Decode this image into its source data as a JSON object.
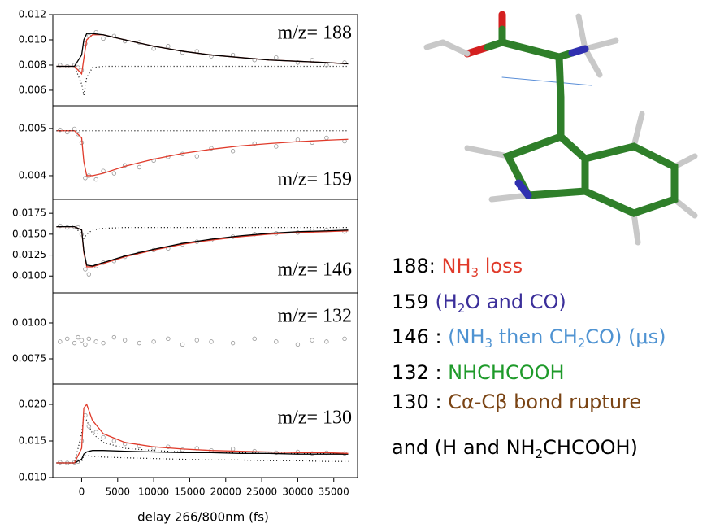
{
  "chart_data": [
    {
      "type": "line",
      "label": "m/z= 188",
      "xlim": [
        -4000,
        38300
      ],
      "ylim": [
        0.00477,
        0.012
      ],
      "yticks": [
        0.006,
        0.008,
        {
          "value": 0.01,
          "label": "0.010"
        },
        0.012
      ],
      "x": [
        -3500,
        -1000,
        0,
        300,
        700,
        1500,
        3000,
        6000,
        10000,
        14000,
        18000,
        22000,
        26000,
        30000,
        34000,
        37000
      ],
      "series": [
        {
          "color": "#e03a2a",
          "style": "solid",
          "values": [
            0.0079,
            0.0079,
            0.0073,
            0.0085,
            0.01,
            0.0104,
            0.0104,
            0.01,
            0.0095,
            0.0091,
            0.0088,
            0.0086,
            0.0084,
            0.0083,
            0.0082,
            0.0081
          ]
        },
        {
          "color": "#000000",
          "style": "solid",
          "values": [
            0.0079,
            0.0079,
            0.0088,
            0.01,
            0.0105,
            0.0105,
            0.0104,
            0.01,
            0.0095,
            0.0091,
            0.0088,
            0.0086,
            0.0084,
            0.0083,
            0.0082,
            0.0081
          ]
        },
        {
          "color": "#000000",
          "style": "dotted",
          "values": [
            0.0079,
            0.0079,
            0.0065,
            0.0056,
            0.007,
            0.0078,
            0.0079,
            0.0079,
            0.0079,
            0.0079,
            0.0079,
            0.0079,
            0.0079,
            0.0079,
            0.0079,
            0.0079
          ]
        }
      ],
      "scatter": {
        "color": "#999999",
        "x": [
          -3000,
          -2000,
          -1000,
          -500,
          0,
          500,
          1000,
          2000,
          3000,
          4500,
          6000,
          8000,
          10000,
          12000,
          14000,
          16000,
          18000,
          21000,
          24000,
          27000,
          30000,
          32000,
          34000,
          36500
        ],
        "values": [
          0.008,
          0.0079,
          0.008,
          0.0078,
          0.0076,
          0.0097,
          0.0103,
          0.0106,
          0.0101,
          0.0103,
          0.0099,
          0.0098,
          0.0093,
          0.0095,
          0.009,
          0.0091,
          0.0087,
          0.0088,
          0.0084,
          0.0086,
          0.0082,
          0.0084,
          0.008,
          0.0082
        ]
      }
    },
    {
      "type": "line",
      "label": "m/z= 159",
      "xlim": [
        -4000,
        38300
      ],
      "ylim": [
        0.0035,
        0.00548
      ],
      "yticks": [
        0.004,
        0.005
      ],
      "x": [
        -3500,
        -1000,
        0,
        300,
        700,
        1500,
        3000,
        6000,
        10000,
        14000,
        18000,
        22000,
        26000,
        30000,
        34000,
        37000
      ],
      "series": [
        {
          "color": "#e03a2a",
          "style": "solid",
          "values": [
            0.00495,
            0.00495,
            0.0048,
            0.0043,
            0.004,
            0.004,
            0.00405,
            0.0042,
            0.00435,
            0.00447,
            0.00456,
            0.00463,
            0.00468,
            0.00472,
            0.00475,
            0.00477
          ]
        },
        {
          "color": "#000000",
          "style": "dotted",
          "values": [
            0.00495,
            0.00495,
            0.00495,
            0.00495,
            0.00495,
            0.00495,
            0.00495,
            0.00495,
            0.00495,
            0.00495,
            0.00495,
            0.00495,
            0.00495,
            0.00495,
            0.00495,
            0.00495
          ]
        }
      ],
      "scatter": {
        "color": "#999999",
        "x": [
          -3000,
          -2000,
          -1000,
          -500,
          0,
          500,
          1000,
          2000,
          3000,
          4500,
          6000,
          8000,
          10000,
          12000,
          14000,
          16000,
          18000,
          21000,
          24000,
          27000,
          30000,
          32000,
          34000,
          36500
        ],
        "values": [
          0.00497,
          0.00492,
          0.00499,
          0.00488,
          0.0047,
          0.00395,
          0.004,
          0.00392,
          0.0041,
          0.00405,
          0.00422,
          0.00418,
          0.00432,
          0.0044,
          0.00446,
          0.00441,
          0.00458,
          0.00452,
          0.00468,
          0.00462,
          0.00476,
          0.0047,
          0.0048,
          0.00473
        ]
      }
    },
    {
      "type": "line",
      "label": "m/z= 146",
      "xlim": [
        -4000,
        38300
      ],
      "ylim": [
        0.00798,
        0.01917
      ],
      "yticks": [
        {
          "value": 0.01,
          "label": "0.0100"
        },
        0.0125,
        {
          "value": 0.015,
          "label": "0.0150"
        },
        0.0175
      ],
      "x": [
        -3500,
        -1000,
        0,
        300,
        700,
        1500,
        3000,
        6000,
        10000,
        14000,
        18000,
        22000,
        26000,
        30000,
        34000,
        37000
      ],
      "series": [
        {
          "color": "#000000",
          "style": "dotted",
          "values": [
            0.0159,
            0.0159,
            0.015,
            0.0145,
            0.015,
            0.0155,
            0.0157,
            0.0158,
            0.0158,
            0.0158,
            0.0158,
            0.0158,
            0.0158,
            0.0158,
            0.0158,
            0.0158
          ]
        },
        {
          "color": "#e03a2a",
          "style": "solid",
          "values": [
            0.0159,
            0.0159,
            0.0155,
            0.0128,
            0.0111,
            0.0111,
            0.0115,
            0.0123,
            0.0131,
            0.0138,
            0.0143,
            0.0147,
            0.015,
            0.0152,
            0.0153,
            0.0154
          ]
        },
        {
          "color": "#000000",
          "style": "solid",
          "values": [
            0.0159,
            0.0159,
            0.0155,
            0.013,
            0.0113,
            0.0112,
            0.0116,
            0.0124,
            0.0132,
            0.0139,
            0.0144,
            0.0148,
            0.0151,
            0.0153,
            0.0154,
            0.0155
          ]
        }
      ],
      "scatter": {
        "color": "#999999",
        "x": [
          -3000,
          -2000,
          -1000,
          -500,
          0,
          500,
          1000,
          2000,
          3000,
          4500,
          6000,
          8000,
          10000,
          12000,
          14000,
          16000,
          18000,
          21000,
          24000,
          27000,
          30000,
          32000,
          34000,
          36500
        ],
        "values": [
          0.016,
          0.0158,
          0.0159,
          0.0158,
          0.015,
          0.0108,
          0.0102,
          0.0112,
          0.0116,
          0.0118,
          0.0123,
          0.0127,
          0.0131,
          0.0133,
          0.0138,
          0.0141,
          0.0143,
          0.0147,
          0.015,
          0.0151,
          0.0152,
          0.0154,
          0.0155,
          0.0153
        ]
      }
    },
    {
      "type": "line",
      "label": "m/z= 132",
      "xlim": [
        -4000,
        38300
      ],
      "ylim": [
        0.00574,
        0.0121
      ],
      "yticks": [
        0.0075,
        {
          "value": 0.01,
          "label": "0.0100"
        }
      ],
      "x": [],
      "series": [],
      "scatter": {
        "color": "#999999",
        "x": [
          -3000,
          -2000,
          -1000,
          -500,
          0,
          500,
          1000,
          2000,
          3000,
          4500,
          6000,
          8000,
          10000,
          12000,
          14000,
          16000,
          18000,
          21000,
          24000,
          27000,
          30000,
          32000,
          34000,
          36500
        ],
        "values": [
          0.0087,
          0.0089,
          0.0086,
          0.009,
          0.0088,
          0.0085,
          0.0089,
          0.0087,
          0.0086,
          0.009,
          0.0088,
          0.0086,
          0.0087,
          0.0089,
          0.0085,
          0.0088,
          0.0087,
          0.0086,
          0.0089,
          0.0087,
          0.0085,
          0.0088,
          0.0087,
          0.0089
        ]
      }
    },
    {
      "type": "line",
      "label": "m/z= 130",
      "xlim": [
        -4000,
        38300
      ],
      "ylim": [
        0.01,
        0.02278
      ],
      "yticks": [
        {
          "value": 0.01,
          "label": "0.010"
        },
        0.015,
        {
          "value": 0.02,
          "label": "0.020"
        }
      ],
      "xticks": [
        0,
        5000,
        10000,
        15000,
        20000,
        25000,
        30000,
        35000
      ],
      "xlabel": "delay 266/800nm (fs)",
      "x": [
        -3500,
        -1000,
        0,
        300,
        700,
        1500,
        3000,
        6000,
        10000,
        14000,
        18000,
        22000,
        26000,
        30000,
        34000,
        37000
      ],
      "series": [
        {
          "color": "#000000",
          "style": "dotted",
          "values": [
            0.012,
            0.012,
            0.016,
            0.0185,
            0.0178,
            0.016,
            0.0148,
            0.014,
            0.0137,
            0.0135,
            0.0134,
            0.0134,
            0.0133,
            0.0133,
            0.0133,
            0.0133
          ]
        },
        {
          "color": "#000000",
          "style": "dotted",
          "values": [
            0.012,
            0.012,
            0.0122,
            0.013,
            0.013,
            0.0129,
            0.0128,
            0.0127,
            0.0126,
            0.0125,
            0.0124,
            0.0124,
            0.0123,
            0.0123,
            0.0122,
            0.0122
          ]
        },
        {
          "color": "#000000",
          "style": "solid",
          "values": [
            0.012,
            0.012,
            0.0125,
            0.0132,
            0.0135,
            0.0137,
            0.0137,
            0.0136,
            0.0135,
            0.0134,
            0.0134,
            0.0133,
            0.0133,
            0.0132,
            0.0132,
            0.0132
          ]
        },
        {
          "color": "#e03a2a",
          "style": "solid",
          "values": [
            0.012,
            0.012,
            0.014,
            0.0195,
            0.02,
            0.0178,
            0.016,
            0.0148,
            0.0142,
            0.0139,
            0.0137,
            0.0136,
            0.0135,
            0.0134,
            0.0134,
            0.0133
          ]
        }
      ],
      "scatter": {
        "color": "#999999",
        "x": [
          -3000,
          -2000,
          -1000,
          -500,
          0,
          500,
          1000,
          2000,
          3000,
          4500,
          6000,
          8000,
          10000,
          12000,
          14000,
          16000,
          18000,
          21000,
          24000,
          27000,
          30000,
          32000,
          34000,
          36500
        ],
        "values": [
          0.0121,
          0.012,
          0.0121,
          0.0122,
          0.015,
          0.0185,
          0.017,
          0.0162,
          0.0155,
          0.015,
          0.0146,
          0.0143,
          0.014,
          0.0142,
          0.0138,
          0.014,
          0.0137,
          0.0139,
          0.0136,
          0.0134,
          0.0135,
          0.0133,
          0.0134,
          0.0133
        ]
      }
    }
  ],
  "annotations": [
    {
      "parts": [
        {
          "text": "188: ",
          "color": "#000000"
        },
        {
          "text": "NH",
          "color": "#e03a2a"
        },
        {
          "text": "3",
          "color": "#e03a2a",
          "sub": true
        },
        {
          "text": " loss",
          "color": "#e03a2a"
        }
      ]
    },
    {
      "parts": [
        {
          "text": "159 ",
          "color": "#000000"
        },
        {
          "text": "(H",
          "color": "#3b2f9a"
        },
        {
          "text": "2",
          "color": "#3b2f9a",
          "sub": true
        },
        {
          "text": "O and CO)",
          "color": "#3b2f9a"
        }
      ]
    },
    {
      "parts": [
        {
          "text": "146 : ",
          "color": "#000000"
        },
        {
          "text": "(NH",
          "color": "#4f93d2"
        },
        {
          "text": "3",
          "color": "#4f93d2",
          "sub": true
        },
        {
          "text": " then CH",
          "color": "#4f93d2"
        },
        {
          "text": "2",
          "color": "#4f93d2",
          "sub": true
        },
        {
          "text": "CO) (μs)",
          "color": "#4f93d2"
        }
      ]
    },
    {
      "parts": [
        {
          "text": "132 : ",
          "color": "#000000"
        },
        {
          "text": " NHCHCOOH",
          "color": "#1e9a2a"
        }
      ]
    },
    {
      "parts": [
        {
          "text": "130 : ",
          "color": "#000000"
        },
        {
          "text": "Cα-Cβ bond rupture",
          "color": "#7a4414"
        }
      ]
    },
    {
      "parts": [
        {
          "text": " and (H and NH",
          "color": "#000000"
        },
        {
          "text": "2",
          "color": "#000000",
          "sub": true
        },
        {
          "text": "CHCOOH)",
          "color": "#000000"
        }
      ]
    }
  ]
}
